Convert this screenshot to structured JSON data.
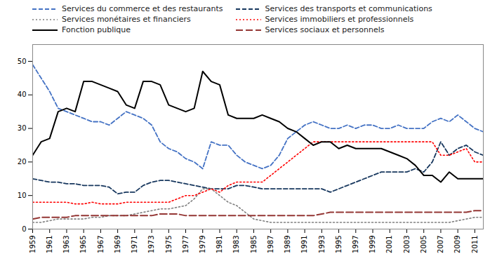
{
  "chart_data": {
    "type": "line",
    "x": [
      1959,
      1960,
      1961,
      1962,
      1963,
      1964,
      1965,
      1966,
      1967,
      1968,
      1969,
      1970,
      1971,
      1972,
      1973,
      1974,
      1975,
      1976,
      1977,
      1978,
      1979,
      1980,
      1981,
      1982,
      1983,
      1984,
      1985,
      1986,
      1987,
      1988,
      1989,
      1990,
      1991,
      1992,
      1993,
      1994,
      1995,
      1996,
      1997,
      1998,
      1999,
      2000,
      2001,
      2002,
      2003,
      2004,
      2005,
      2006,
      2007,
      2008,
      2009,
      2010,
      2011,
      2012
    ],
    "series": [
      {
        "name": "Services du commerce et des restaurants",
        "color": "#4472C4",
        "line_style": "dashed",
        "values": [
          49,
          45,
          41,
          36,
          35,
          34,
          33,
          32,
          32,
          31,
          33,
          35,
          34,
          33,
          31,
          26,
          24,
          23,
          21,
          20,
          18,
          26,
          25,
          25,
          22,
          20,
          19,
          18,
          19,
          22,
          27,
          29,
          31,
          32,
          31,
          30,
          30,
          31,
          30,
          31,
          31,
          30,
          30,
          31,
          30,
          30,
          30,
          32,
          33,
          32,
          34,
          32,
          30,
          29
        ]
      },
      {
        "name": "Services des transports et communications",
        "color": "#17375E",
        "line_style": "dashed",
        "values": [
          15,
          14.5,
          14,
          14,
          13.5,
          13.5,
          13,
          13,
          13,
          12.5,
          10.5,
          11,
          11,
          13,
          14,
          14.5,
          14.5,
          14,
          13.5,
          13,
          12.5,
          12,
          12,
          12,
          13,
          13,
          12.5,
          12,
          12,
          12,
          12,
          12,
          12,
          12,
          12,
          11,
          12,
          13,
          14,
          15,
          16,
          17,
          17,
          17,
          17,
          18,
          17,
          20,
          26,
          22,
          24,
          25,
          23,
          22
        ]
      },
      {
        "name": "Services monétaires et financiers",
        "color": "#7F7F7F",
        "line_style": "dotted",
        "values": [
          2,
          2,
          2.5,
          3,
          3,
          3,
          3,
          3.5,
          3.5,
          4,
          4,
          4,
          4.5,
          5,
          5.5,
          6,
          6,
          6.5,
          7,
          9,
          12,
          12,
          10,
          8,
          7,
          5,
          3,
          2.5,
          2,
          2,
          2,
          2,
          2,
          2,
          2,
          2,
          2,
          2,
          2,
          2,
          2,
          2,
          2,
          2,
          2,
          2,
          2,
          2,
          2,
          2,
          2.5,
          3,
          3.5,
          3.5
        ]
      },
      {
        "name": "Services immobiliers et professionnels",
        "color": "#FF0000",
        "line_style": "dotted",
        "values": [
          8,
          8,
          8,
          8,
          8,
          7.5,
          7.5,
          8,
          7.5,
          7.5,
          7.5,
          8,
          8,
          8,
          8,
          8,
          8,
          9,
          10,
          10,
          11,
          12,
          11,
          13,
          14,
          14,
          14,
          14,
          16,
          18,
          20,
          22,
          24,
          26,
          26,
          26,
          26,
          26,
          26,
          26,
          26,
          26,
          26,
          26,
          26,
          26,
          26,
          26,
          22,
          22,
          23,
          24,
          20,
          20
        ]
      },
      {
        "name": "Fonction publique",
        "color": "#000000",
        "line_style": "solid",
        "values": [
          22,
          26,
          27,
          35,
          36,
          35,
          44,
          44,
          43,
          42,
          41,
          37,
          36,
          44,
          44,
          43,
          37,
          36,
          35,
          36,
          47,
          44,
          43,
          34,
          33,
          33,
          33,
          34,
          33,
          32,
          30,
          29,
          27,
          25,
          26,
          26,
          24,
          25,
          24,
          24,
          24,
          24,
          23,
          22,
          21,
          19,
          16,
          16,
          14,
          17,
          15,
          15,
          15,
          15
        ]
      },
      {
        "name": "Services sociaux et personnels",
        "color": "#943634",
        "line_style": "longdash",
        "values": [
          3,
          3.5,
          3.5,
          3.5,
          3.5,
          4,
          4,
          4,
          4,
          4,
          4,
          4,
          4,
          4,
          4,
          4.5,
          4.5,
          4.5,
          4,
          4,
          4,
          4,
          4,
          4,
          4,
          4,
          4,
          4,
          4,
          4,
          4,
          4,
          4,
          4,
          4.5,
          5,
          5,
          5,
          5,
          5,
          5,
          5,
          5,
          5,
          5,
          5,
          5,
          5,
          5,
          5,
          5,
          5,
          5.5,
          5.5
        ]
      }
    ],
    "xlim": [
      1959,
      2012
    ],
    "xticks": [
      1959,
      1961,
      1963,
      1965,
      1967,
      1969,
      1971,
      1973,
      1975,
      1977,
      1979,
      1981,
      1983,
      1985,
      1987,
      1989,
      1991,
      1993,
      1995,
      1997,
      1999,
      2001,
      2003,
      2005,
      2007,
      2009,
      2011
    ],
    "ylim": [
      0,
      55
    ],
    "yticks": [
      0,
      10,
      20,
      30,
      40,
      50
    ],
    "grid": false,
    "legend": "upper left"
  }
}
